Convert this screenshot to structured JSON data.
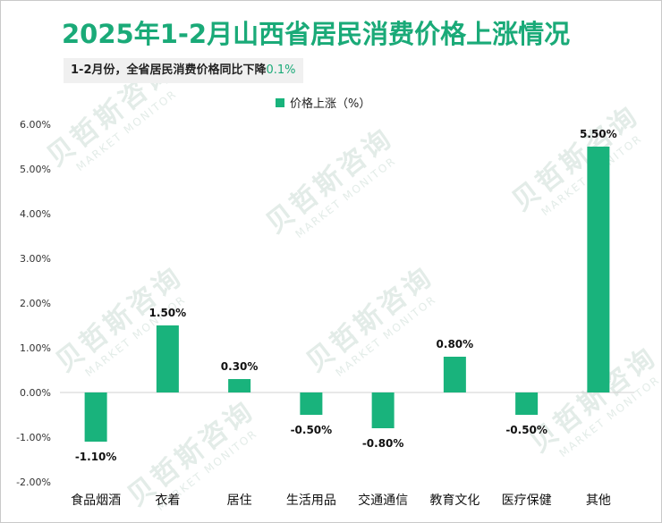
{
  "title": "2025年1-2月山西省居民消费价格上涨情况",
  "subtitle": {
    "text": "1-2月份，全省居民消费价格同比下降",
    "highlight": "0.1%"
  },
  "watermark": {
    "cn": "贝哲斯咨询",
    "en": "MARKET MONITOR"
  },
  "colors": {
    "accent": "#1aaa78",
    "bar": "#19b37c",
    "grid": "#e4e4e4"
  },
  "chart_data": {
    "type": "bar",
    "categories": [
      "食品烟酒",
      "衣着",
      "居住",
      "生活用品",
      "交通通信",
      "教育文化",
      "医疗保健",
      "其他"
    ],
    "series": [
      {
        "name": "价格上涨（%）",
        "values": [
          -1.1,
          1.5,
          0.3,
          -0.5,
          -0.8,
          0.8,
          -0.5,
          5.5
        ]
      }
    ],
    "value_labels": [
      "-1.10%",
      "1.50%",
      "0.30%",
      "-0.50%",
      "-0.80%",
      "0.80%",
      "-0.50%",
      "5.50%"
    ],
    "y_ticks": [
      "-2.00%",
      "-1.00%",
      "0.00%",
      "1.00%",
      "2.00%",
      "3.00%",
      "4.00%",
      "5.00%",
      "6.00%"
    ],
    "ylim": [
      -2,
      6
    ],
    "legend_position": "top-center",
    "grid": false
  }
}
